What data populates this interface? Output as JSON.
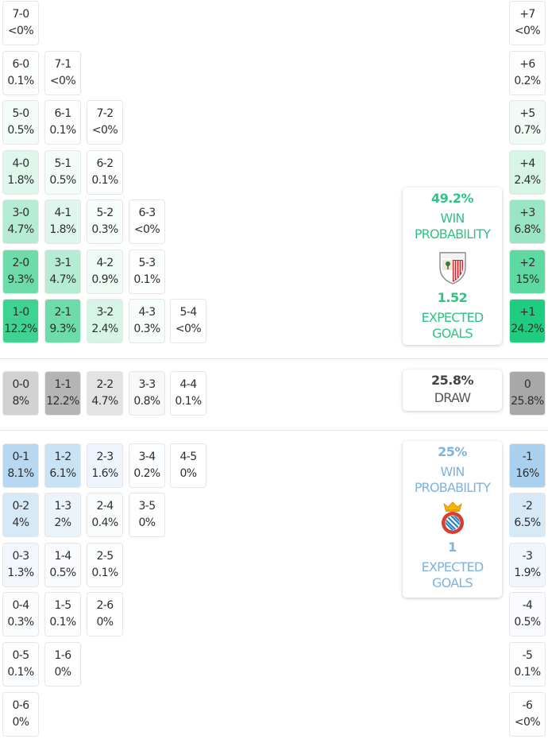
{
  "home_team": {
    "win_probability": "49.2%",
    "win_label_1": "WIN",
    "win_label_2": "PROBABILITY",
    "expected_goals": "1.52",
    "xg_label_1": "EXPECTED",
    "xg_label_2": "GOALS",
    "crest": "athletic-club-crest",
    "color": "#2ec486"
  },
  "draw": {
    "probability": "25.8%",
    "label": "DRAW"
  },
  "away_team": {
    "win_probability": "25%",
    "win_label_1": "WIN",
    "win_label_2": "PROBABILITY",
    "expected_goals": "1",
    "xg_label_1": "EXPECTED",
    "xg_label_2": "GOALS",
    "crest": "espanyol-crest",
    "color": "#7fb3dc"
  },
  "home_scores": [
    {
      "score": "7-0",
      "pct": "<0%",
      "row": 0,
      "col": 0,
      "bg": "#ffffff"
    },
    {
      "score": "6-0",
      "pct": "0.1%",
      "row": 1,
      "col": 0,
      "bg": "#fdfefe"
    },
    {
      "score": "7-1",
      "pct": "<0%",
      "row": 1,
      "col": 1,
      "bg": "#ffffff"
    },
    {
      "score": "5-0",
      "pct": "0.5%",
      "row": 2,
      "col": 0,
      "bg": "#f3fcf8"
    },
    {
      "score": "6-1",
      "pct": "0.1%",
      "row": 2,
      "col": 1,
      "bg": "#fdfefe"
    },
    {
      "score": "7-2",
      "pct": "<0%",
      "row": 2,
      "col": 2,
      "bg": "#ffffff"
    },
    {
      "score": "4-0",
      "pct": "1.8%",
      "row": 3,
      "col": 0,
      "bg": "#dff6ec"
    },
    {
      "score": "5-1",
      "pct": "0.5%",
      "row": 3,
      "col": 1,
      "bg": "#f3fcf8"
    },
    {
      "score": "6-2",
      "pct": "0.1%",
      "row": 3,
      "col": 2,
      "bg": "#fdfefe"
    },
    {
      "score": "3-0",
      "pct": "4.7%",
      "row": 4,
      "col": 0,
      "bg": "#b5ecd3"
    },
    {
      "score": "4-1",
      "pct": "1.8%",
      "row": 4,
      "col": 1,
      "bg": "#dff6ec"
    },
    {
      "score": "5-2",
      "pct": "0.3%",
      "row": 4,
      "col": 2,
      "bg": "#f7fdfa"
    },
    {
      "score": "6-3",
      "pct": "<0%",
      "row": 4,
      "col": 3,
      "bg": "#ffffff"
    },
    {
      "score": "2-0",
      "pct": "9.3%",
      "row": 5,
      "col": 0,
      "bg": "#6ddcaa"
    },
    {
      "score": "3-1",
      "pct": "4.7%",
      "row": 5,
      "col": 1,
      "bg": "#b5ecd3"
    },
    {
      "score": "4-2",
      "pct": "0.9%",
      "row": 5,
      "col": 2,
      "bg": "#eefaf4"
    },
    {
      "score": "5-3",
      "pct": "0.1%",
      "row": 5,
      "col": 3,
      "bg": "#fdfefe"
    },
    {
      "score": "1-0",
      "pct": "12.2%",
      "row": 6,
      "col": 0,
      "bg": "#3fd393"
    },
    {
      "score": "2-1",
      "pct": "9.3%",
      "row": 6,
      "col": 1,
      "bg": "#6ddcaa"
    },
    {
      "score": "3-2",
      "pct": "2.4%",
      "row": 6,
      "col": 2,
      "bg": "#d6f5e7"
    },
    {
      "score": "4-3",
      "pct": "0.3%",
      "row": 6,
      "col": 3,
      "bg": "#f7fdfa"
    },
    {
      "score": "5-4",
      "pct": "<0%",
      "row": 6,
      "col": 4,
      "bg": "#ffffff"
    }
  ],
  "draw_scores": [
    {
      "score": "0-0",
      "pct": "8%",
      "col": 0,
      "bg": "#d2d2d2"
    },
    {
      "score": "1-1",
      "pct": "12.2%",
      "col": 1,
      "bg": "#b5b5b5"
    },
    {
      "score": "2-2",
      "pct": "4.7%",
      "col": 2,
      "bg": "#e3e3e3"
    },
    {
      "score": "3-3",
      "pct": "0.8%",
      "col": 3,
      "bg": "#f8f8f8"
    },
    {
      "score": "4-4",
      "pct": "0.1%",
      "col": 4,
      "bg": "#ffffff"
    }
  ],
  "away_scores": [
    {
      "score": "0-1",
      "pct": "8.1%",
      "row": 0,
      "col": 0,
      "bg": "#b7d8f0"
    },
    {
      "score": "1-2",
      "pct": "6.1%",
      "row": 0,
      "col": 1,
      "bg": "#c9e2f4"
    },
    {
      "score": "2-3",
      "pct": "1.6%",
      "row": 0,
      "col": 2,
      "bg": "#eef5fc"
    },
    {
      "score": "3-4",
      "pct": "0.2%",
      "row": 0,
      "col": 3,
      "bg": "#fcfdff"
    },
    {
      "score": "4-5",
      "pct": "0%",
      "row": 0,
      "col": 4,
      "bg": "#ffffff"
    },
    {
      "score": "0-2",
      "pct": "4%",
      "row": 1,
      "col": 0,
      "bg": "#d6e9f7"
    },
    {
      "score": "1-3",
      "pct": "2%",
      "row": 1,
      "col": 1,
      "bg": "#ebf4fb"
    },
    {
      "score": "2-4",
      "pct": "0.4%",
      "row": 1,
      "col": 2,
      "bg": "#fafcfe"
    },
    {
      "score": "3-5",
      "pct": "0%",
      "row": 1,
      "col": 3,
      "bg": "#ffffff"
    },
    {
      "score": "0-3",
      "pct": "1.3%",
      "row": 2,
      "col": 0,
      "bg": "#f1f7fc"
    },
    {
      "score": "1-4",
      "pct": "0.5%",
      "row": 2,
      "col": 1,
      "bg": "#f9fbfe"
    },
    {
      "score": "2-5",
      "pct": "0.1%",
      "row": 2,
      "col": 2,
      "bg": "#fdfeff"
    },
    {
      "score": "0-4",
      "pct": "0.3%",
      "row": 3,
      "col": 0,
      "bg": "#fbfcfe"
    },
    {
      "score": "1-5",
      "pct": "0.1%",
      "row": 3,
      "col": 1,
      "bg": "#fdfeff"
    },
    {
      "score": "2-6",
      "pct": "0%",
      "row": 3,
      "col": 2,
      "bg": "#ffffff"
    },
    {
      "score": "0-5",
      "pct": "0.1%",
      "row": 4,
      "col": 0,
      "bg": "#fdfeff"
    },
    {
      "score": "1-6",
      "pct": "0%",
      "row": 4,
      "col": 1,
      "bg": "#ffffff"
    },
    {
      "score": "0-6",
      "pct": "0%",
      "row": 5,
      "col": 0,
      "bg": "#ffffff"
    }
  ],
  "margins_home": [
    {
      "margin": "+7",
      "pct": "<0%",
      "bg": "#ffffff"
    },
    {
      "margin": "+6",
      "pct": "0.2%",
      "bg": "#fcfefd"
    },
    {
      "margin": "+5",
      "pct": "0.7%",
      "bg": "#f1fbf6"
    },
    {
      "margin": "+4",
      "pct": "2.4%",
      "bg": "#d6f5e7"
    },
    {
      "margin": "+3",
      "pct": "6.8%",
      "bg": "#9ae6c4"
    },
    {
      "margin": "+2",
      "pct": "15%",
      "bg": "#5fd9a2"
    },
    {
      "margin": "+1",
      "pct": "24.2%",
      "bg": "#1fcc80"
    }
  ],
  "margin_draw": {
    "margin": "0",
    "pct": "25.8%",
    "bg": "#a8a8a8"
  },
  "margins_away": [
    {
      "margin": "-1",
      "pct": "16%",
      "bg": "#a9d1ef"
    },
    {
      "margin": "-2",
      "pct": "6.5%",
      "bg": "#d6e9f7"
    },
    {
      "margin": "-3",
      "pct": "1.9%",
      "bg": "#eff6fc"
    },
    {
      "margin": "-4",
      "pct": "0.5%",
      "bg": "#f9fbfe"
    },
    {
      "margin": "-5",
      "pct": "0.1%",
      "bg": "#fdfeff"
    },
    {
      "margin": "-6",
      "pct": "<0%",
      "bg": "#ffffff"
    }
  ]
}
